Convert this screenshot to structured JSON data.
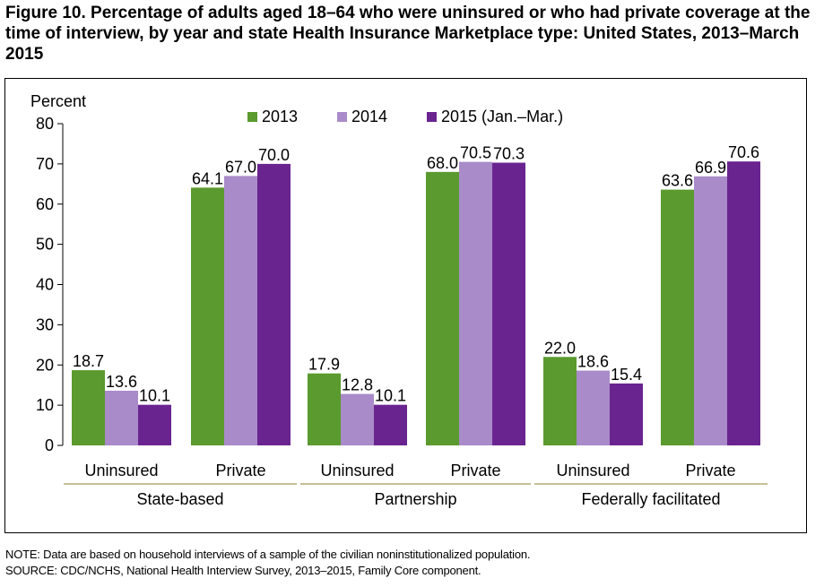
{
  "title": "Figure 10. Percentage of adults aged 18–64 who were uninsured or who had private coverage at the time of interview, by year and state Health Insurance Marketplace type: United States, 2013–March 2015",
  "colors": {
    "2013": "#5a9a2e",
    "2014": "#a98bc9",
    "2015": "#6a2490",
    "underline": "#c4bf94"
  },
  "chart_data": {
    "type": "bar",
    "ylabel": "Percent",
    "ylim": [
      0,
      80
    ],
    "yticks": [
      0,
      10,
      20,
      30,
      40,
      50,
      60,
      70,
      80
    ],
    "grid": false,
    "legend_position": "top",
    "groups": [
      {
        "name": "State-based",
        "categories": [
          "Uninsured",
          "Private"
        ]
      },
      {
        "name": "Partnership",
        "categories": [
          "Uninsured",
          "Private"
        ]
      },
      {
        "name": "Federally facilitated",
        "categories": [
          "Uninsured",
          "Private"
        ]
      }
    ],
    "categories": [
      "Uninsured",
      "Private",
      "Uninsured",
      "Private",
      "Uninsured",
      "Private"
    ],
    "series": [
      {
        "name": "2013",
        "values": [
          18.7,
          64.1,
          17.9,
          68.0,
          22.0,
          63.6
        ],
        "labels": [
          "18.7",
          "64.1",
          "17.9",
          "68.0",
          "22.0",
          "63.6"
        ]
      },
      {
        "name": "2014",
        "values": [
          13.6,
          67.0,
          12.8,
          70.5,
          18.6,
          66.9
        ],
        "labels": [
          "13.6",
          "67.0",
          "12.8",
          "70.5",
          "18.6",
          "66.9"
        ]
      },
      {
        "name": "2015 (Jan.–Mar.)",
        "values": [
          10.1,
          70.0,
          10.1,
          70.3,
          15.4,
          70.6
        ],
        "labels": [
          "10.1",
          "70.0",
          "10.1",
          "70.3",
          "15.4",
          "70.6"
        ]
      }
    ]
  },
  "notes": {
    "note": "NOTE: Data are based on household interviews of a sample of the civilian noninstitutionalized population.",
    "source": "SOURCE: CDC/NCHS, National Health Interview Survey, 2013–2015, Family Core component."
  }
}
